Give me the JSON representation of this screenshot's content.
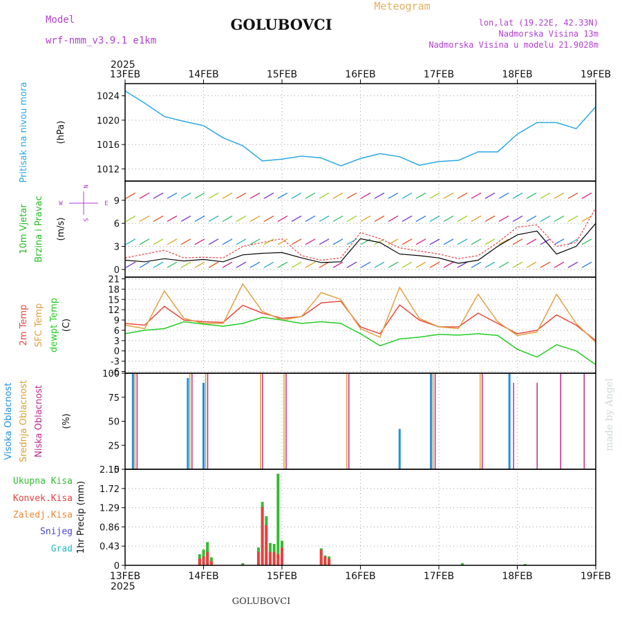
{
  "header": {
    "model_label": "Model",
    "model_name": "wrf-nmm_v3.9.1 e1km",
    "station": "GOLUBOVCI",
    "product": "Meteogram",
    "coords": "lon,lat (19.22E, 42.33N)",
    "elevation": "Nadmorska Visina 13m",
    "model_elevation": "Nadmorska Visina u modelu 21.9028m"
  },
  "footer": {
    "station": "GOLUBOVCI",
    "credit": "made by Angel"
  },
  "time_axis": {
    "year": "2025",
    "ticks": [
      "13FEB",
      "14FEB",
      "15FEB",
      "16FEB",
      "17FEB",
      "18FEB",
      "19FEB"
    ]
  },
  "compass": {
    "n": "N",
    "s": "S",
    "e": "E",
    "w": "W"
  },
  "colors": {
    "pressure": "#2aa7e6",
    "wind_label": "#22bb22",
    "t2m": "#e8463b",
    "tsfc": "#e0a040",
    "dewpt": "#22cc22",
    "high_cloud": "#1e90e0",
    "mid_cloud": "#d8a030",
    "low_cloud": "#c02a90",
    "total_precip": "#33bb33",
    "conv_precip": "#e84040",
    "frozen_precip": "#ee8833",
    "snow": "#4444dd",
    "hail": "#22bbbb",
    "model": "#b040d0",
    "product": "#e0b060"
  },
  "chart_data": [
    {
      "type": "line",
      "panel": "pressure",
      "ylabel_lines": [
        "Pritisak na nivou mora"
      ],
      "unit": "(hPa)",
      "ylim": [
        1010,
        1026
      ],
      "yticks": [
        "1012",
        "1016",
        "1020",
        "1024"
      ],
      "ytick_values": [
        1012,
        1016,
        1020,
        1024
      ],
      "x": [
        0,
        0.25,
        0.5,
        0.75,
        1.0,
        1.25,
        1.5,
        1.75,
        2.0,
        2.25,
        2.5,
        2.75,
        3.0,
        3.25,
        3.5,
        3.75,
        4.0,
        4.25,
        4.5,
        4.75,
        5.0,
        5.25,
        5.5,
        5.75,
        6.0
      ],
      "series": [
        {
          "values": [
            1024.8,
            1022.8,
            1020.6,
            1019.8,
            1019.1,
            1017.1,
            1015.8,
            1013.3,
            1013.6,
            1014.1,
            1013.8,
            1012.5,
            1013.7,
            1014.5,
            1014.0,
            1012.6,
            1013.2,
            1013.4,
            1014.8,
            1014.8,
            1017.7,
            1019.6,
            1019.6,
            1018.6,
            1022.2
          ]
        }
      ],
      "grid": true
    },
    {
      "type": "line",
      "panel": "wind",
      "ylabel_lines": [
        "10m Vjetar",
        "Brzina i Pravac"
      ],
      "unit": "(m/s)",
      "ylim": [
        -1,
        11.5
      ],
      "yticks": [
        "0",
        "3",
        "6",
        "9"
      ],
      "ytick_values": [
        0,
        3,
        6,
        9
      ],
      "x": [
        0,
        0.25,
        0.5,
        0.75,
        1.0,
        1.25,
        1.5,
        1.75,
        2.0,
        2.25,
        2.5,
        2.75,
        3.0,
        3.25,
        3.5,
        3.75,
        4.0,
        4.25,
        4.5,
        4.75,
        5.0,
        5.25,
        5.5,
        5.75,
        6.0
      ],
      "series": [
        {
          "name": "speed",
          "values": [
            1.2,
            1.0,
            1.4,
            1.1,
            1.3,
            1.0,
            1.9,
            2.1,
            2.2,
            1.5,
            0.9,
            1.0,
            4.0,
            3.5,
            2.0,
            1.8,
            1.5,
            0.8,
            1.2,
            3.0,
            4.5,
            5.0,
            2.0,
            3.0,
            6.0
          ]
        },
        {
          "name": "gust",
          "values": [
            1.5,
            2.0,
            2.5,
            1.5,
            1.6,
            1.5,
            3.0,
            3.5,
            4.0,
            1.8,
            1.2,
            1.5,
            4.8,
            4.0,
            2.8,
            2.4,
            2.0,
            1.4,
            1.8,
            3.5,
            5.5,
            5.8,
            3.0,
            3.5,
            8.0
          ]
        }
      ],
      "grid": true
    },
    {
      "type": "line",
      "panel": "temperature",
      "ylabel_lines": [
        "2m Temp",
        "SFC Temp",
        "dewpt Temp"
      ],
      "unit": "(C)",
      "ylim": [
        -6.5,
        21.5
      ],
      "yticks": [
        "-6",
        "-3",
        "0",
        "3",
        "6",
        "9",
        "12",
        "15",
        "18",
        "21"
      ],
      "ytick_values": [
        -6,
        -3,
        0,
        3,
        6,
        9,
        12,
        15,
        18,
        21
      ],
      "x": [
        0,
        0.25,
        0.5,
        0.75,
        1.0,
        1.25,
        1.5,
        1.75,
        2.0,
        2.25,
        2.5,
        2.75,
        3.0,
        3.25,
        3.5,
        3.75,
        4.0,
        4.25,
        4.5,
        4.75,
        5.0,
        5.25,
        5.5,
        5.75,
        6.0
      ],
      "series": [
        {
          "name": "2m Temp",
          "values": [
            8.0,
            7.5,
            13.0,
            9.0,
            8.5,
            8.3,
            13.3,
            11.0,
            9.5,
            10.0,
            14.0,
            14.5,
            7.0,
            5.0,
            13.4,
            9.0,
            7.0,
            7.0,
            11.0,
            8.0,
            5.0,
            6.0,
            10.5,
            7.5,
            3.0
          ]
        },
        {
          "name": "SFC Temp",
          "values": [
            7.5,
            6.5,
            17.5,
            9.5,
            8.0,
            8.0,
            19.5,
            11.5,
            9.0,
            10.0,
            17.0,
            15.0,
            6.5,
            4.0,
            18.5,
            9.5,
            7.0,
            6.5,
            16.5,
            8.5,
            4.5,
            5.5,
            16.5,
            8.0,
            2.5
          ]
        },
        {
          "name": "dewpt Temp",
          "values": [
            5.0,
            6.0,
            6.5,
            8.5,
            7.8,
            7.2,
            8.0,
            9.8,
            9.0,
            8.0,
            8.5,
            8.0,
            5.0,
            1.5,
            3.5,
            4.0,
            4.8,
            4.6,
            5.0,
            4.5,
            0.5,
            -1.8,
            1.8,
            0.0,
            -4.0
          ]
        }
      ],
      "grid": true
    },
    {
      "type": "bar",
      "panel": "clouds",
      "ylabel_lines": [
        "Visoka Oblacnost",
        "Srednja Oblacnost",
        "Niska Oblacnost"
      ],
      "unit": "(%)",
      "ylim": [
        0,
        100
      ],
      "yticks": [
        "0",
        "25",
        "50",
        "75",
        "100"
      ],
      "ytick_values": [
        0,
        25,
        50,
        75,
        100
      ],
      "x": [
        0.1,
        0.8,
        1.0,
        1.7,
        2.0,
        2.8,
        3.5,
        3.9,
        4.5,
        4.9,
        5.2,
        5.5,
        5.8
      ],
      "series": [
        {
          "name": "high",
          "values": [
            100,
            95,
            90,
            0,
            0,
            0,
            42,
            100,
            0,
            100,
            0,
            0,
            0
          ]
        },
        {
          "name": "mid",
          "values": [
            100,
            100,
            100,
            100,
            100,
            100,
            0,
            100,
            100,
            0,
            0,
            0,
            0
          ]
        },
        {
          "name": "low",
          "values": [
            100,
            100,
            100,
            100,
            100,
            100,
            0,
            100,
            100,
            90,
            90,
            100,
            100
          ]
        }
      ],
      "grid": false
    },
    {
      "type": "bar",
      "panel": "precipitation",
      "ylabel_lines": [
        "1hr Precip (mm)"
      ],
      "unit": "(mm)",
      "legend": [
        "Ukupna Kisa",
        "Konvek.Kisa",
        "Zaledj.Kisa",
        "Snijeg",
        "Grad"
      ],
      "ylim": [
        0,
        2.15
      ],
      "yticks": [
        "0",
        "0.43",
        "0.86",
        "1.29",
        "1.72",
        "2.15"
      ],
      "ytick_values": [
        0,
        0.43,
        0.86,
        1.29,
        1.72,
        2.15
      ],
      "x": [
        0.95,
        1.0,
        1.05,
        1.1,
        1.5,
        1.7,
        1.75,
        1.8,
        1.85,
        1.9,
        1.95,
        2.0,
        2.5,
        2.55,
        2.6,
        4.3,
        5.1
      ],
      "series": [
        {
          "name": "Ukupna Kisa",
          "values": [
            0.25,
            0.35,
            0.52,
            0.18,
            0.05,
            0.4,
            1.42,
            1.1,
            0.5,
            0.48,
            2.05,
            0.55,
            0.38,
            0.22,
            0.2,
            0.05,
            0.03
          ]
        },
        {
          "name": "Konvek.Kisa",
          "values": [
            0.15,
            0.2,
            0.3,
            0.1,
            0.02,
            0.3,
            1.3,
            0.9,
            0.3,
            0.3,
            0.25,
            0.4,
            0.35,
            0.2,
            0.15,
            0.0,
            0.0
          ]
        }
      ],
      "grid": true
    }
  ]
}
